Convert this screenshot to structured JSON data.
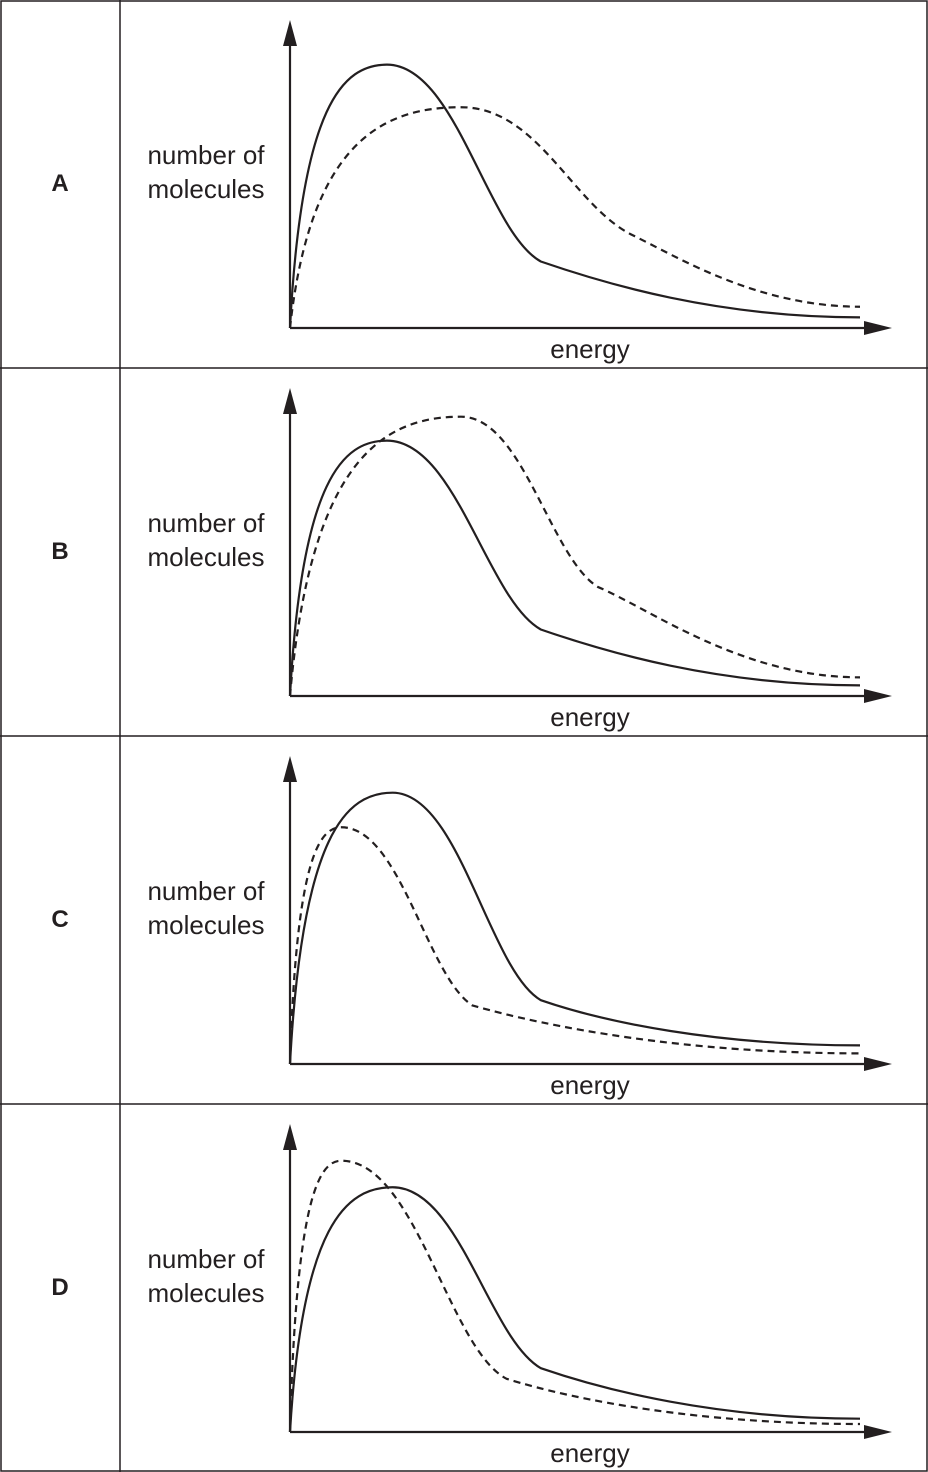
{
  "colors": {
    "line": "#231f20",
    "background": "#ffffff"
  },
  "chart_data": [
    {
      "type": "line",
      "option": "A",
      "ylabel": "number of molecules",
      "xlabel": "energy",
      "grid": false,
      "xlim": [
        0,
        10
      ],
      "ylim": [
        0,
        10
      ],
      "series": [
        {
          "style": "solid",
          "x": [
            0,
            1.7,
            4.4,
            10
          ],
          "y": [
            0,
            9.9,
            2.5,
            0.4
          ]
        },
        {
          "style": "dashed",
          "x": [
            0,
            3.0,
            6.0,
            10
          ],
          "y": [
            0,
            8.3,
            3.5,
            0.8
          ]
        }
      ]
    },
    {
      "type": "line",
      "option": "B",
      "ylabel": "number of molecules",
      "xlabel": "energy",
      "grid": false,
      "xlim": [
        0,
        10
      ],
      "ylim": [
        0,
        10
      ],
      "series": [
        {
          "style": "solid",
          "x": [
            0,
            1.7,
            4.4,
            10
          ],
          "y": [
            0,
            9.6,
            2.5,
            0.4
          ]
        },
        {
          "style": "dashed",
          "x": [
            0,
            3.0,
            5.4,
            10
          ],
          "y": [
            0,
            10.5,
            4.1,
            0.7
          ]
        }
      ]
    },
    {
      "type": "line",
      "option": "C",
      "ylabel": "number of molecules",
      "xlabel": "energy",
      "grid": false,
      "xlim": [
        0,
        10
      ],
      "ylim": [
        0,
        10
      ],
      "series": [
        {
          "style": "solid",
          "x": [
            0,
            1.8,
            4.4,
            10
          ],
          "y": [
            0,
            10.2,
            2.4,
            0.7
          ]
        },
        {
          "style": "dashed",
          "x": [
            0,
            0.9,
            3.2,
            10
          ],
          "y": [
            0,
            8.9,
            2.2,
            0.4
          ]
        }
      ]
    },
    {
      "type": "line",
      "option": "D",
      "ylabel": "number of molecules",
      "xlabel": "energy",
      "grid": false,
      "xlim": [
        0,
        10
      ],
      "ylim": [
        0,
        10
      ],
      "series": [
        {
          "style": "solid",
          "x": [
            0,
            1.8,
            4.4,
            10
          ],
          "y": [
            0,
            9.2,
            2.4,
            0.5
          ]
        },
        {
          "style": "dashed",
          "x": [
            0,
            0.9,
            3.8,
            10
          ],
          "y": [
            0,
            10.2,
            2.0,
            0.3
          ]
        }
      ]
    }
  ]
}
